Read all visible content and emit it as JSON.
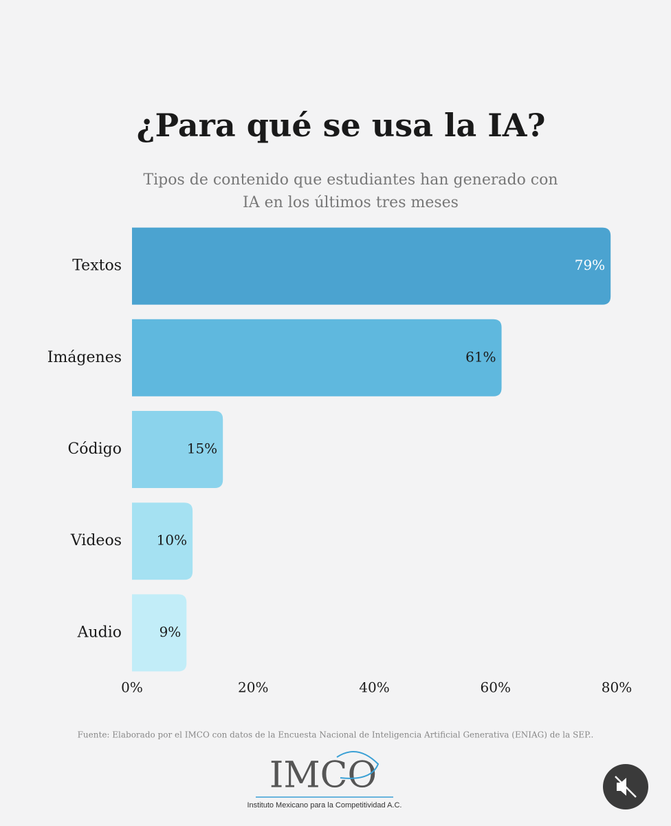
{
  "chart_data": {
    "type": "hbar",
    "title": "¿Para qué se usa la IA?",
    "subtitle": [
      "Tipos de contenido que estudiantes han generado con",
      "IA en los últimos tres meses"
    ],
    "categories": [
      "Textos",
      "Imágenes",
      "Código",
      "Videos",
      "Audio"
    ],
    "values": [
      79,
      61,
      15,
      10,
      9
    ],
    "value_labels": [
      "79%",
      "61%",
      "15%",
      "10%",
      "9%"
    ],
    "colors": [
      "#4ba3d0",
      "#5fb8de",
      "#8bd3ec",
      "#a5e1f2",
      "#c2edf8"
    ],
    "label_colors": [
      "#ffffff",
      "#1a1a1a",
      "#1a1a1a",
      "#1a1a1a",
      "#1a1a1a"
    ],
    "xlim": [
      0,
      80
    ],
    "xticks": [
      {
        "value": 0,
        "label": "0%"
      },
      {
        "value": 20,
        "label": "20%"
      },
      {
        "value": 40,
        "label": "40%"
      },
      {
        "value": 60,
        "label": "60%"
      },
      {
        "value": 80,
        "label": "80%"
      }
    ],
    "source": "Fuente: Elaborado por el IMCO con datos de la Encuesta Nacional de Inteligencia Artificial Generativa (ENIAG) de la SEP..",
    "logo": "IMCO",
    "logo_caption": "Instituto Mexicano para la Competitividad A.C."
  }
}
